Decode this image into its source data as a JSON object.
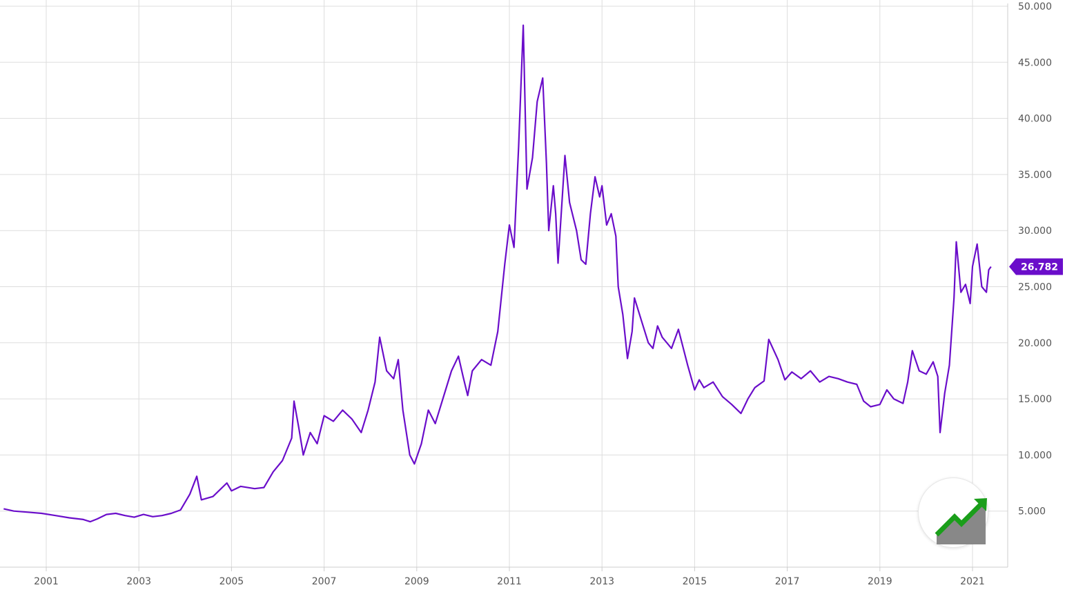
{
  "chart_data": {
    "type": "line",
    "title": "",
    "xlabel": "",
    "ylabel": "",
    "ylim": [
      0,
      50000
    ],
    "grid": true,
    "y_axis_side": "right",
    "y_ticks": [
      "5.000",
      "10.000",
      "15.000",
      "20.000",
      "25.000",
      "30.000",
      "35.000",
      "40.000",
      "45.000",
      "50.000"
    ],
    "y_tick_values": [
      5000,
      10000,
      15000,
      20000,
      25000,
      30000,
      35000,
      40000,
      45000,
      50000
    ],
    "x_ticks": [
      "2001",
      "2003",
      "2005",
      "2007",
      "2009",
      "2011",
      "2013",
      "2015",
      "2017",
      "2019",
      "2021"
    ],
    "x_tick_values": [
      2001,
      2003,
      2005,
      2007,
      2009,
      2011,
      2013,
      2015,
      2017,
      2019,
      2021
    ],
    "last_value_label": "26.782",
    "line_color": "#6a0dca",
    "series": [
      {
        "values": [
          [
            2000.08,
            5200
          ],
          [
            2000.3,
            5000
          ],
          [
            2000.6,
            4900
          ],
          [
            2000.9,
            4800
          ],
          [
            2001.2,
            4600
          ],
          [
            2001.5,
            4400
          ],
          [
            2001.8,
            4250
          ],
          [
            2001.95,
            4050
          ],
          [
            2002.1,
            4300
          ],
          [
            2002.3,
            4700
          ],
          [
            2002.5,
            4800
          ],
          [
            2002.7,
            4600
          ],
          [
            2002.9,
            4450
          ],
          [
            2003.1,
            4700
          ],
          [
            2003.3,
            4500
          ],
          [
            2003.5,
            4600
          ],
          [
            2003.7,
            4800
          ],
          [
            2003.9,
            5100
          ],
          [
            2004.1,
            6500
          ],
          [
            2004.25,
            8100
          ],
          [
            2004.35,
            6000
          ],
          [
            2004.6,
            6300
          ],
          [
            2004.9,
            7500
          ],
          [
            2005.0,
            6800
          ],
          [
            2005.2,
            7200
          ],
          [
            2005.5,
            7000
          ],
          [
            2005.7,
            7100
          ],
          [
            2005.9,
            8500
          ],
          [
            2006.1,
            9500
          ],
          [
            2006.3,
            11500
          ],
          [
            2006.35,
            14800
          ],
          [
            2006.45,
            12500
          ],
          [
            2006.55,
            10000
          ],
          [
            2006.7,
            12000
          ],
          [
            2006.85,
            11000
          ],
          [
            2007.0,
            13500
          ],
          [
            2007.2,
            13000
          ],
          [
            2007.4,
            14000
          ],
          [
            2007.6,
            13200
          ],
          [
            2007.8,
            12000
          ],
          [
            2007.95,
            14000
          ],
          [
            2008.1,
            16500
          ],
          [
            2008.2,
            20500
          ],
          [
            2008.35,
            17500
          ],
          [
            2008.5,
            16800
          ],
          [
            2008.6,
            18500
          ],
          [
            2008.7,
            14000
          ],
          [
            2008.85,
            10000
          ],
          [
            2008.95,
            9200
          ],
          [
            2009.1,
            11000
          ],
          [
            2009.25,
            14000
          ],
          [
            2009.4,
            12800
          ],
          [
            2009.6,
            15500
          ],
          [
            2009.75,
            17500
          ],
          [
            2009.9,
            18800
          ],
          [
            2010.0,
            17000
          ],
          [
            2010.1,
            15300
          ],
          [
            2010.2,
            17500
          ],
          [
            2010.4,
            18500
          ],
          [
            2010.6,
            18000
          ],
          [
            2010.75,
            21000
          ],
          [
            2010.9,
            27000
          ],
          [
            2011.0,
            30500
          ],
          [
            2011.1,
            28500
          ],
          [
            2011.2,
            37500
          ],
          [
            2011.3,
            48300
          ],
          [
            2011.38,
            33700
          ],
          [
            2011.5,
            36500
          ],
          [
            2011.6,
            41500
          ],
          [
            2011.72,
            43600
          ],
          [
            2011.8,
            36000
          ],
          [
            2011.85,
            30000
          ],
          [
            2011.95,
            34000
          ],
          [
            2012.0,
            31500
          ],
          [
            2012.05,
            27100
          ],
          [
            2012.15,
            33500
          ],
          [
            2012.2,
            36700
          ],
          [
            2012.3,
            32500
          ],
          [
            2012.45,
            30000
          ],
          [
            2012.55,
            27400
          ],
          [
            2012.65,
            27000
          ],
          [
            2012.75,
            31500
          ],
          [
            2012.85,
            34800
          ],
          [
            2012.95,
            33000
          ],
          [
            2013.0,
            34000
          ],
          [
            2013.1,
            30500
          ],
          [
            2013.2,
            31500
          ],
          [
            2013.3,
            29500
          ],
          [
            2013.35,
            25000
          ],
          [
            2013.45,
            22500
          ],
          [
            2013.55,
            18600
          ],
          [
            2013.65,
            21000
          ],
          [
            2013.7,
            24000
          ],
          [
            2013.85,
            22000
          ],
          [
            2014.0,
            20000
          ],
          [
            2014.1,
            19500
          ],
          [
            2014.2,
            21500
          ],
          [
            2014.3,
            20500
          ],
          [
            2014.5,
            19500
          ],
          [
            2014.65,
            21200
          ],
          [
            2014.85,
            18000
          ],
          [
            2015.0,
            15800
          ],
          [
            2015.1,
            16700
          ],
          [
            2015.2,
            16000
          ],
          [
            2015.4,
            16500
          ],
          [
            2015.6,
            15200
          ],
          [
            2015.8,
            14500
          ],
          [
            2016.0,
            13700
          ],
          [
            2016.15,
            15000
          ],
          [
            2016.3,
            16000
          ],
          [
            2016.5,
            16600
          ],
          [
            2016.6,
            20300
          ],
          [
            2016.8,
            18500
          ],
          [
            2016.95,
            16700
          ],
          [
            2017.1,
            17400
          ],
          [
            2017.3,
            16800
          ],
          [
            2017.5,
            17500
          ],
          [
            2017.7,
            16500
          ],
          [
            2017.9,
            17000
          ],
          [
            2018.1,
            16800
          ],
          [
            2018.3,
            16500
          ],
          [
            2018.5,
            16300
          ],
          [
            2018.65,
            14800
          ],
          [
            2018.8,
            14300
          ],
          [
            2019.0,
            14500
          ],
          [
            2019.15,
            15800
          ],
          [
            2019.3,
            15000
          ],
          [
            2019.5,
            14600
          ],
          [
            2019.6,
            16500
          ],
          [
            2019.7,
            19300
          ],
          [
            2019.85,
            17500
          ],
          [
            2020.0,
            17200
          ],
          [
            2020.15,
            18300
          ],
          [
            2020.25,
            17000
          ],
          [
            2020.3,
            12000
          ],
          [
            2020.4,
            15500
          ],
          [
            2020.5,
            18000
          ],
          [
            2020.6,
            24000
          ],
          [
            2020.65,
            29000
          ],
          [
            2020.75,
            24500
          ],
          [
            2020.85,
            25200
          ],
          [
            2020.95,
            23500
          ],
          [
            2021.0,
            26800
          ],
          [
            2021.1,
            28800
          ],
          [
            2021.2,
            25000
          ],
          [
            2021.3,
            24500
          ],
          [
            2021.35,
            26500
          ],
          [
            2021.4,
            26782
          ]
        ]
      }
    ]
  }
}
